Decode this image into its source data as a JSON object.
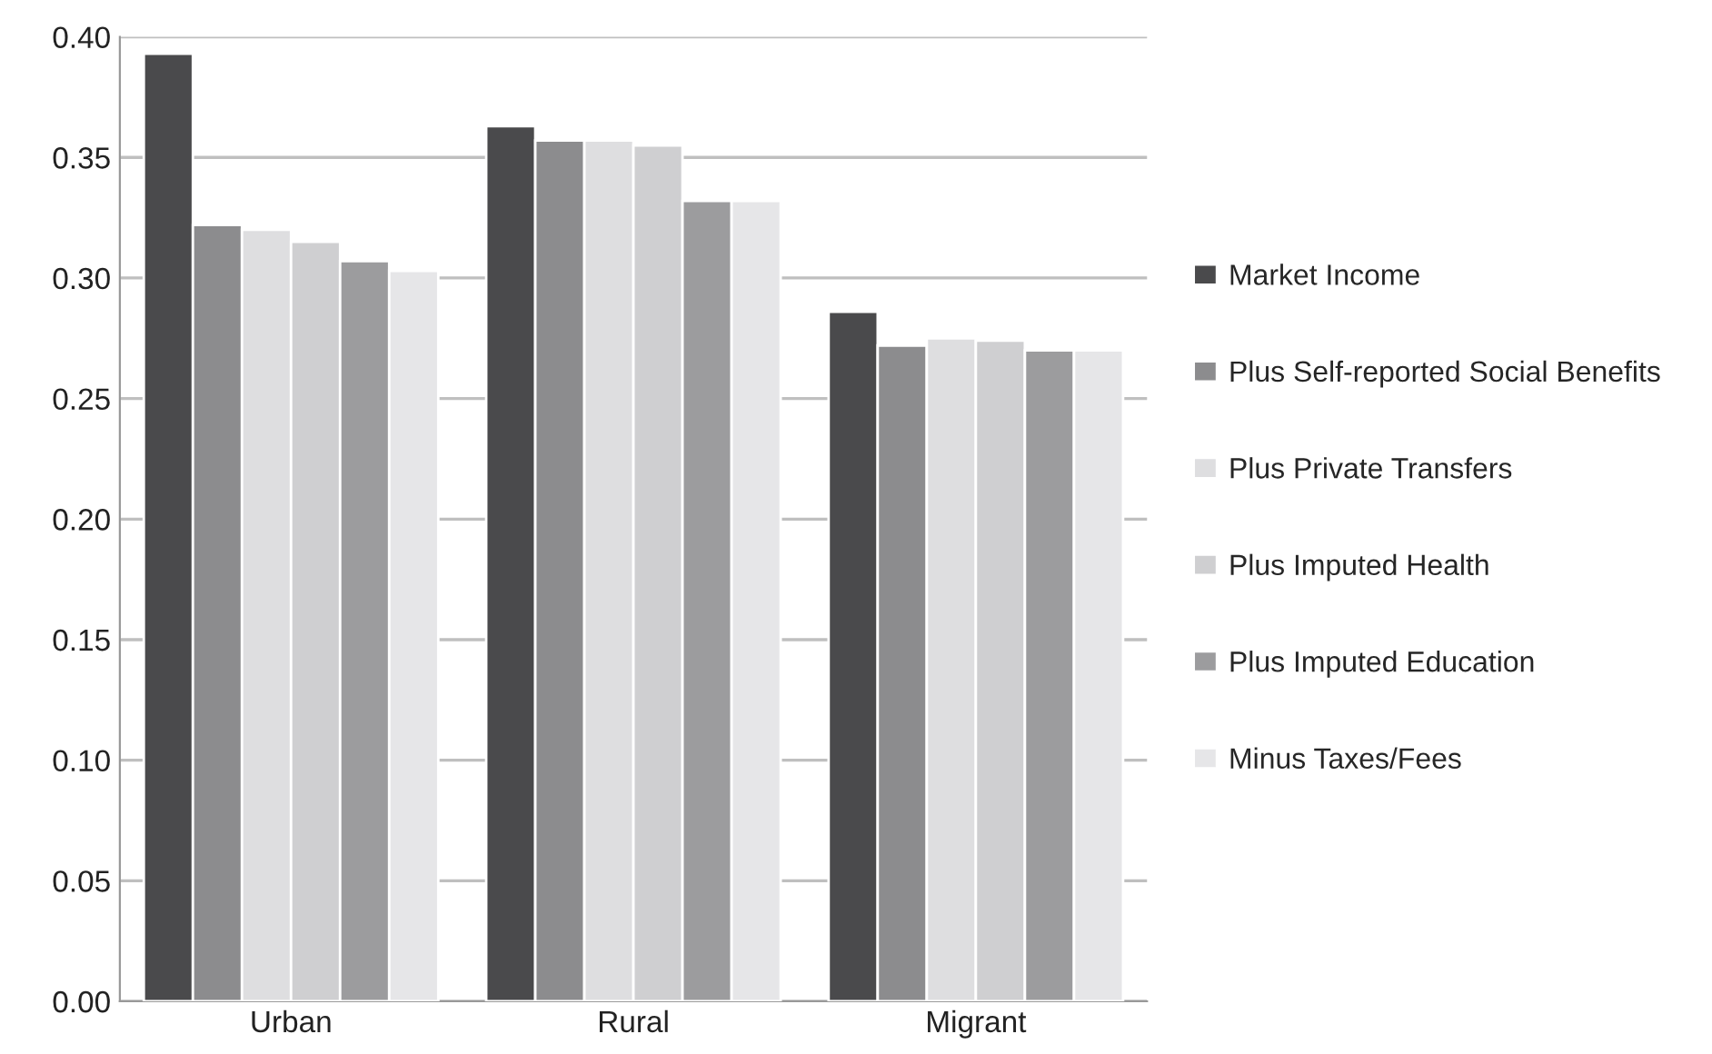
{
  "chart_data": {
    "type": "bar",
    "categories": [
      "Urban",
      "Rural",
      "Migrant"
    ],
    "series": [
      {
        "name": "Market Income",
        "color": "#4a4a4c",
        "values": [
          0.393,
          0.363,
          0.286
        ]
      },
      {
        "name": "Plus Self-reported Social Benefits",
        "color": "#8c8c8e",
        "values": [
          0.322,
          0.357,
          0.272
        ]
      },
      {
        "name": "Plus Private Transfers",
        "color": "#dedee0",
        "values": [
          0.32,
          0.357,
          0.275
        ]
      },
      {
        "name": "Plus Imputed Health",
        "color": "#cfcfd1",
        "values": [
          0.315,
          0.355,
          0.274
        ]
      },
      {
        "name": "Plus Imputed Education",
        "color": "#9c9c9e",
        "values": [
          0.307,
          0.332,
          0.27
        ]
      },
      {
        "name": "Minus Taxes/Fees",
        "color": "#e6e6e8",
        "values": [
          0.303,
          0.332,
          0.27
        ]
      }
    ],
    "ylim": [
      0,
      0.4
    ],
    "yticks": [
      {
        "value": 0,
        "label": "0.00"
      },
      {
        "value": 0.05,
        "label": "0.05"
      },
      {
        "value": 0.1,
        "label": "0.10"
      },
      {
        "value": 0.15,
        "label": "0.15"
      },
      {
        "value": 0.2,
        "label": "0.20"
      },
      {
        "value": 0.25,
        "label": "0.25"
      },
      {
        "value": 0.3,
        "label": "0.30"
      },
      {
        "value": 0.35,
        "label": "0.35"
      },
      {
        "value": 0.4,
        "label": "0.40"
      }
    ],
    "grid": "y",
    "legend": "right"
  }
}
